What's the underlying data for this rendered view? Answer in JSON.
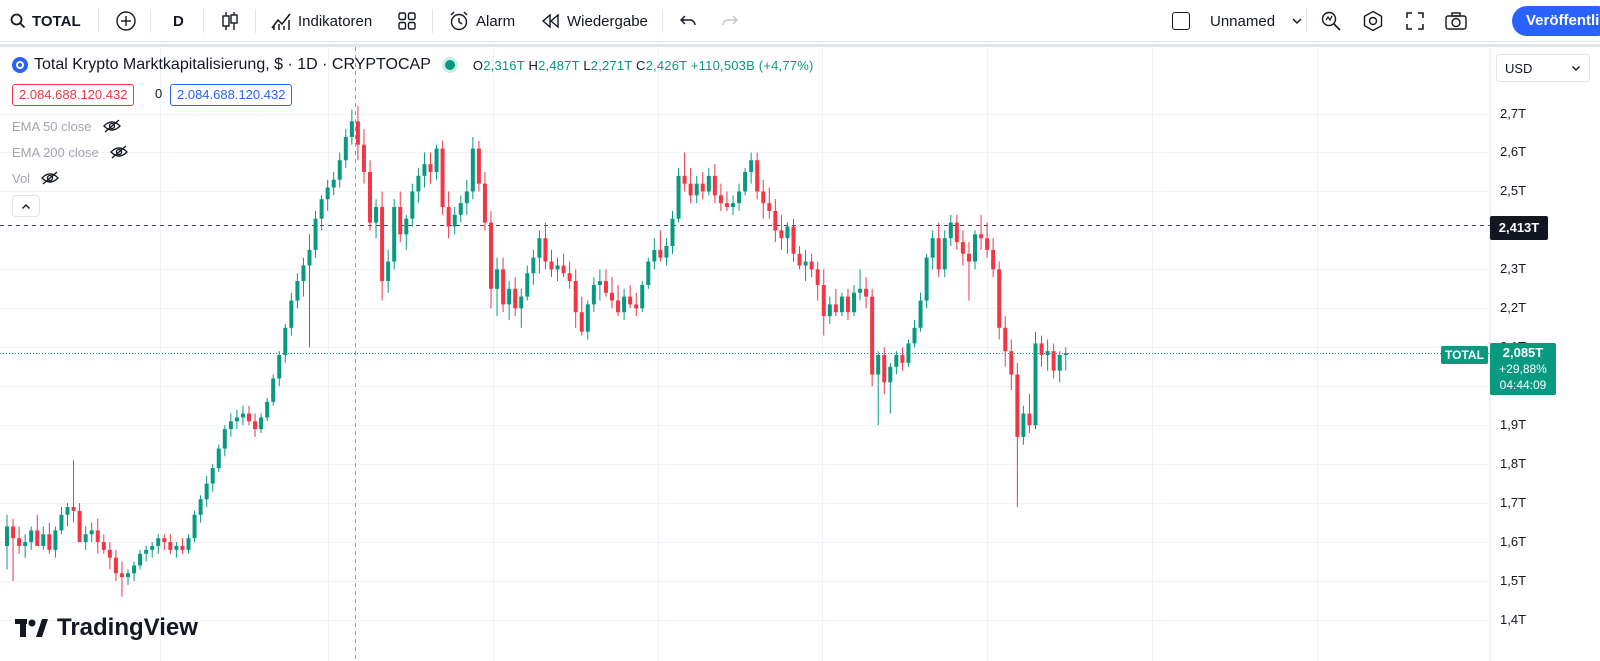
{
  "toolbar": {
    "symbol": "TOTAL",
    "interval": "D",
    "indicators_label": "Indikatoren",
    "alert_label": "Alarm",
    "replay_label": "Wiedergabe",
    "layout_name": "Unnamed",
    "publish_label": "Veröffentlichen"
  },
  "legend": {
    "title": "Total Krypto Marktkapitalisierung, $ · 1D · CRYPTOCAP",
    "o_label": "O",
    "o_value": "2,316T",
    "h_label": "H",
    "h_value": "2,487T",
    "l_label": "L",
    "l_value": "2,271T",
    "c_label": "C",
    "c_value": "2,426T",
    "change": "+110,503B (+4,77%)",
    "sell_price": "2.084.688.120.432",
    "spread": "0",
    "buy_price": "2.084.688.120.432"
  },
  "indicators": [
    {
      "label": "EMA 50 close"
    },
    {
      "label": "EMA 200 close"
    },
    {
      "label": "Vol"
    }
  ],
  "axis": {
    "currency": "USD",
    "ticks": [
      "2,7T",
      "2,6T",
      "2,5T",
      "2,3T",
      "2,2T",
      "2,1T",
      "1,9T",
      "1,8T",
      "1,7T",
      "1,6T",
      "1,5T",
      "1,4T"
    ],
    "crosshair_value": "2,413T",
    "last_symbol": "TOTAL",
    "last_price": "2,085T",
    "last_change": "+29,88%",
    "countdown": "04:44:09"
  },
  "brand": {
    "name": "TradingView"
  },
  "colors": {
    "up": "#089981",
    "down": "#f23645",
    "accent": "#2962ff"
  },
  "chart_data": {
    "type": "candlestick",
    "unit": "T USD",
    "ylim": [
      1.4,
      2.7
    ],
    "grid": true,
    "crosshair_y": 2.413,
    "last_close": 2.085,
    "candles": [
      [
        1.59,
        1.67,
        1.53,
        1.64
      ],
      [
        1.64,
        1.66,
        1.5,
        1.61
      ],
      [
        1.61,
        1.64,
        1.57,
        1.59
      ],
      [
        1.59,
        1.62,
        1.56,
        1.6
      ],
      [
        1.6,
        1.64,
        1.58,
        1.63
      ],
      [
        1.63,
        1.67,
        1.59,
        1.59
      ],
      [
        1.59,
        1.64,
        1.58,
        1.62
      ],
      [
        1.62,
        1.65,
        1.57,
        1.58
      ],
      [
        1.58,
        1.64,
        1.56,
        1.63
      ],
      [
        1.63,
        1.69,
        1.62,
        1.67
      ],
      [
        1.67,
        1.7,
        1.64,
        1.69
      ],
      [
        1.69,
        1.81,
        1.65,
        1.68
      ],
      [
        1.68,
        1.7,
        1.6,
        1.6
      ],
      [
        1.6,
        1.64,
        1.58,
        1.62
      ],
      [
        1.62,
        1.65,
        1.6,
        1.63
      ],
      [
        1.63,
        1.66,
        1.57,
        1.6
      ],
      [
        1.6,
        1.62,
        1.57,
        1.58
      ],
      [
        1.58,
        1.6,
        1.53,
        1.56
      ],
      [
        1.56,
        1.58,
        1.5,
        1.52
      ],
      [
        1.52,
        1.55,
        1.46,
        1.51
      ],
      [
        1.51,
        1.53,
        1.49,
        1.52
      ],
      [
        1.52,
        1.55,
        1.5,
        1.54
      ],
      [
        1.54,
        1.58,
        1.53,
        1.57
      ],
      [
        1.57,
        1.59,
        1.55,
        1.58
      ],
      [
        1.58,
        1.6,
        1.56,
        1.59
      ],
      [
        1.59,
        1.62,
        1.57,
        1.61
      ],
      [
        1.61,
        1.62,
        1.58,
        1.6
      ],
      [
        1.6,
        1.62,
        1.57,
        1.58
      ],
      [
        1.58,
        1.6,
        1.56,
        1.59
      ],
      [
        1.59,
        1.61,
        1.57,
        1.58
      ],
      [
        1.58,
        1.62,
        1.57,
        1.61
      ],
      [
        1.61,
        1.68,
        1.6,
        1.67
      ],
      [
        1.67,
        1.72,
        1.65,
        1.71
      ],
      [
        1.71,
        1.77,
        1.69,
        1.75
      ],
      [
        1.75,
        1.8,
        1.73,
        1.79
      ],
      [
        1.79,
        1.85,
        1.78,
        1.84
      ],
      [
        1.84,
        1.9,
        1.82,
        1.89
      ],
      [
        1.89,
        1.93,
        1.87,
        1.91
      ],
      [
        1.91,
        1.94,
        1.89,
        1.92
      ],
      [
        1.92,
        1.95,
        1.9,
        1.93
      ],
      [
        1.93,
        1.95,
        1.9,
        1.91
      ],
      [
        1.91,
        1.93,
        1.87,
        1.89
      ],
      [
        1.89,
        1.93,
        1.88,
        1.92
      ],
      [
        1.92,
        1.97,
        1.91,
        1.96
      ],
      [
        1.96,
        2.03,
        1.95,
        2.02
      ],
      [
        2.02,
        2.09,
        2.0,
        2.08
      ],
      [
        2.08,
        2.16,
        2.06,
        2.15
      ],
      [
        2.15,
        2.24,
        2.13,
        2.22
      ],
      [
        2.22,
        2.29,
        2.2,
        2.27
      ],
      [
        2.27,
        2.33,
        2.23,
        2.31
      ],
      [
        2.31,
        2.39,
        2.1,
        2.35
      ],
      [
        2.35,
        2.45,
        2.33,
        2.43
      ],
      [
        2.43,
        2.49,
        2.4,
        2.48
      ],
      [
        2.48,
        2.53,
        2.45,
        2.51
      ],
      [
        2.51,
        2.55,
        2.49,
        2.53
      ],
      [
        2.53,
        2.6,
        2.51,
        2.58
      ],
      [
        2.58,
        2.66,
        2.56,
        2.64
      ],
      [
        2.64,
        2.71,
        2.62,
        2.68
      ],
      [
        2.68,
        2.72,
        2.58,
        2.62
      ],
      [
        2.62,
        2.66,
        2.52,
        2.55
      ],
      [
        2.55,
        2.58,
        2.4,
        2.42
      ],
      [
        2.42,
        2.48,
        2.38,
        2.46
      ],
      [
        2.46,
        2.5,
        2.22,
        2.27
      ],
      [
        2.27,
        2.35,
        2.24,
        2.32
      ],
      [
        2.32,
        2.48,
        2.3,
        2.46
      ],
      [
        2.46,
        2.5,
        2.37,
        2.39
      ],
      [
        2.39,
        2.44,
        2.35,
        2.43
      ],
      [
        2.43,
        2.52,
        2.41,
        2.5
      ],
      [
        2.5,
        2.56,
        2.47,
        2.54
      ],
      [
        2.54,
        2.6,
        2.51,
        2.57
      ],
      [
        2.57,
        2.6,
        2.52,
        2.55
      ],
      [
        2.55,
        2.62,
        2.53,
        2.61
      ],
      [
        2.61,
        2.63,
        2.44,
        2.46
      ],
      [
        2.46,
        2.5,
        2.38,
        2.41
      ],
      [
        2.41,
        2.46,
        2.39,
        2.44
      ],
      [
        2.44,
        2.49,
        2.42,
        2.47
      ],
      [
        2.47,
        2.53,
        2.44,
        2.5
      ],
      [
        2.5,
        2.64,
        2.48,
        2.61
      ],
      [
        2.61,
        2.63,
        2.5,
        2.52
      ],
      [
        2.52,
        2.55,
        2.4,
        2.42
      ],
      [
        2.42,
        2.45,
        2.2,
        2.25
      ],
      [
        2.25,
        2.33,
        2.18,
        2.3
      ],
      [
        2.3,
        2.33,
        2.19,
        2.21
      ],
      [
        2.21,
        2.27,
        2.17,
        2.25
      ],
      [
        2.25,
        2.28,
        2.18,
        2.2
      ],
      [
        2.2,
        2.25,
        2.15,
        2.23
      ],
      [
        2.23,
        2.31,
        2.22,
        2.29
      ],
      [
        2.29,
        2.35,
        2.26,
        2.33
      ],
      [
        2.33,
        2.4,
        2.29,
        2.38
      ],
      [
        2.38,
        2.42,
        2.3,
        2.32
      ],
      [
        2.32,
        2.35,
        2.28,
        2.3
      ],
      [
        2.3,
        2.33,
        2.27,
        2.31
      ],
      [
        2.31,
        2.34,
        2.28,
        2.29
      ],
      [
        2.29,
        2.32,
        2.25,
        2.27
      ],
      [
        2.27,
        2.3,
        2.15,
        2.19
      ],
      [
        2.19,
        2.23,
        2.13,
        2.14
      ],
      [
        2.14,
        2.22,
        2.12,
        2.21
      ],
      [
        2.21,
        2.28,
        2.19,
        2.26
      ],
      [
        2.26,
        2.3,
        2.22,
        2.27
      ],
      [
        2.27,
        2.3,
        2.23,
        2.24
      ],
      [
        2.24,
        2.28,
        2.2,
        2.22
      ],
      [
        2.22,
        2.26,
        2.18,
        2.19
      ],
      [
        2.19,
        2.25,
        2.17,
        2.23
      ],
      [
        2.23,
        2.26,
        2.2,
        2.21
      ],
      [
        2.21,
        2.24,
        2.18,
        2.2
      ],
      [
        2.2,
        2.27,
        2.19,
        2.26
      ],
      [
        2.26,
        2.33,
        2.25,
        2.32
      ],
      [
        2.32,
        2.38,
        2.3,
        2.35
      ],
      [
        2.35,
        2.4,
        2.32,
        2.33
      ],
      [
        2.33,
        2.38,
        2.31,
        2.36
      ],
      [
        2.36,
        2.45,
        2.34,
        2.43
      ],
      [
        2.43,
        2.56,
        2.42,
        2.54
      ],
      [
        2.54,
        2.6,
        2.5,
        2.52
      ],
      [
        2.52,
        2.56,
        2.47,
        2.49
      ],
      [
        2.49,
        2.54,
        2.47,
        2.52
      ],
      [
        2.52,
        2.55,
        2.48,
        2.5
      ],
      [
        2.5,
        2.56,
        2.49,
        2.54
      ],
      [
        2.54,
        2.57,
        2.47,
        2.49
      ],
      [
        2.49,
        2.52,
        2.45,
        2.47
      ],
      [
        2.47,
        2.5,
        2.45,
        2.46
      ],
      [
        2.46,
        2.49,
        2.44,
        2.47
      ],
      [
        2.47,
        2.52,
        2.45,
        2.5
      ],
      [
        2.5,
        2.56,
        2.49,
        2.55
      ],
      [
        2.55,
        2.6,
        2.52,
        2.58
      ],
      [
        2.58,
        2.6,
        2.48,
        2.5
      ],
      [
        2.5,
        2.53,
        2.43,
        2.47
      ],
      [
        2.47,
        2.51,
        2.43,
        2.45
      ],
      [
        2.45,
        2.48,
        2.37,
        2.4
      ],
      [
        2.4,
        2.44,
        2.35,
        2.38
      ],
      [
        2.38,
        2.42,
        2.34,
        2.41
      ],
      [
        2.41,
        2.43,
        2.32,
        2.34
      ],
      [
        2.34,
        2.36,
        2.3,
        2.31
      ],
      [
        2.31,
        2.35,
        2.27,
        2.32
      ],
      [
        2.32,
        2.34,
        2.28,
        2.3
      ],
      [
        2.3,
        2.32,
        2.22,
        2.26
      ],
      [
        2.26,
        2.3,
        2.13,
        2.18
      ],
      [
        2.18,
        2.23,
        2.16,
        2.21
      ],
      [
        2.21,
        2.25,
        2.18,
        2.19
      ],
      [
        2.19,
        2.24,
        2.18,
        2.23
      ],
      [
        2.23,
        2.25,
        2.17,
        2.19
      ],
      [
        2.19,
        2.26,
        2.18,
        2.24
      ],
      [
        2.24,
        2.3,
        2.22,
        2.25
      ],
      [
        2.25,
        2.28,
        2.2,
        2.23
      ],
      [
        2.23,
        2.25,
        2.0,
        2.03
      ],
      [
        2.03,
        2.09,
        1.9,
        2.08
      ],
      [
        2.08,
        2.1,
        1.98,
        2.01
      ],
      [
        2.01,
        2.06,
        1.93,
        2.05
      ],
      [
        2.05,
        2.09,
        2.03,
        2.08
      ],
      [
        2.08,
        2.1,
        2.04,
        2.06
      ],
      [
        2.06,
        2.12,
        2.05,
        2.11
      ],
      [
        2.11,
        2.17,
        2.1,
        2.15
      ],
      [
        2.15,
        2.24,
        2.14,
        2.22
      ],
      [
        2.22,
        2.34,
        2.2,
        2.33
      ],
      [
        2.33,
        2.4,
        2.3,
        2.38
      ],
      [
        2.38,
        2.42,
        2.28,
        2.3
      ],
      [
        2.3,
        2.4,
        2.28,
        2.38
      ],
      [
        2.38,
        2.44,
        2.36,
        2.42
      ],
      [
        2.42,
        2.44,
        2.35,
        2.37
      ],
      [
        2.37,
        2.4,
        2.31,
        2.34
      ],
      [
        2.34,
        2.37,
        2.22,
        2.32
      ],
      [
        2.32,
        2.4,
        2.3,
        2.39
      ],
      [
        2.39,
        2.44,
        2.35,
        2.38
      ],
      [
        2.38,
        2.42,
        2.33,
        2.35
      ],
      [
        2.35,
        2.38,
        2.28,
        2.3
      ],
      [
        2.3,
        2.32,
        2.12,
        2.15
      ],
      [
        2.15,
        2.18,
        2.05,
        2.09
      ],
      [
        2.09,
        2.12,
        1.99,
        2.03
      ],
      [
        2.03,
        2.06,
        1.69,
        1.87
      ],
      [
        1.87,
        1.95,
        1.85,
        1.93
      ],
      [
        1.93,
        1.98,
        1.88,
        1.9
      ],
      [
        1.9,
        2.14,
        1.89,
        2.11
      ],
      [
        2.11,
        2.13,
        2.05,
        2.08
      ],
      [
        2.08,
        2.12,
        2.04,
        2.09
      ],
      [
        2.09,
        2.11,
        2.02,
        2.04
      ],
      [
        2.04,
        2.09,
        2.01,
        2.08
      ],
      [
        2.08,
        2.1,
        2.04,
        2.085
      ]
    ]
  }
}
